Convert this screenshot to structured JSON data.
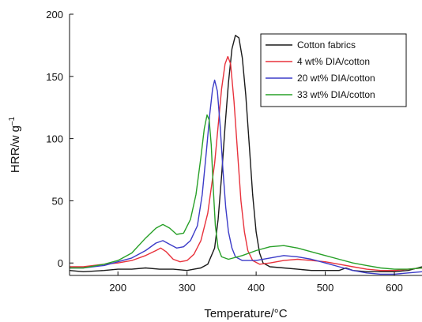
{
  "chart_data": {
    "type": "line",
    "title": "",
    "xlabel": "Temperature/°C",
    "ylabel_main": "HRR/w g",
    "ylabel_sup": "–1",
    "xlim": [
      130,
      640
    ],
    "ylim": [
      -10,
      200
    ],
    "xticks": [
      200,
      300,
      400,
      500,
      600
    ],
    "yticks": [
      0,
      50,
      100,
      150,
      200
    ],
    "grid": false,
    "legend_position": "top-right",
    "series": [
      {
        "name": "Cotton fabrics",
        "color": "#1a1a1a",
        "points": [
          [
            130,
            -6
          ],
          [
            150,
            -7
          ],
          [
            180,
            -6
          ],
          [
            200,
            -5
          ],
          [
            220,
            -5
          ],
          [
            240,
            -4
          ],
          [
            260,
            -5
          ],
          [
            280,
            -5
          ],
          [
            300,
            -6
          ],
          [
            310,
            -5
          ],
          [
            320,
            -4
          ],
          [
            330,
            -1
          ],
          [
            340,
            12
          ],
          [
            345,
            35
          ],
          [
            350,
            70
          ],
          [
            355,
            110
          ],
          [
            360,
            145
          ],
          [
            365,
            172
          ],
          [
            370,
            183
          ],
          [
            375,
            181
          ],
          [
            380,
            165
          ],
          [
            385,
            135
          ],
          [
            390,
            95
          ],
          [
            395,
            55
          ],
          [
            400,
            25
          ],
          [
            405,
            8
          ],
          [
            410,
            0
          ],
          [
            420,
            -3
          ],
          [
            440,
            -4
          ],
          [
            460,
            -5
          ],
          [
            480,
            -6
          ],
          [
            500,
            -6
          ],
          [
            520,
            -6
          ],
          [
            530,
            -4
          ],
          [
            540,
            -6
          ],
          [
            560,
            -7
          ],
          [
            580,
            -7
          ],
          [
            600,
            -7
          ],
          [
            620,
            -6
          ],
          [
            640,
            -3
          ]
        ]
      },
      {
        "name": "4 wt% DIA/cotton",
        "color": "#e8323c",
        "points": [
          [
            130,
            -3
          ],
          [
            150,
            -3
          ],
          [
            180,
            -1
          ],
          [
            200,
            0
          ],
          [
            220,
            2
          ],
          [
            240,
            6
          ],
          [
            255,
            10
          ],
          [
            262,
            12
          ],
          [
            270,
            9
          ],
          [
            280,
            3
          ],
          [
            290,
            1
          ],
          [
            300,
            2
          ],
          [
            310,
            7
          ],
          [
            320,
            18
          ],
          [
            330,
            40
          ],
          [
            340,
            80
          ],
          [
            345,
            110
          ],
          [
            350,
            140
          ],
          [
            355,
            160
          ],
          [
            359,
            166
          ],
          [
            363,
            160
          ],
          [
            368,
            130
          ],
          [
            373,
            90
          ],
          [
            378,
            50
          ],
          [
            383,
            25
          ],
          [
            388,
            10
          ],
          [
            395,
            2
          ],
          [
            405,
            -1
          ],
          [
            420,
            0
          ],
          [
            440,
            2
          ],
          [
            460,
            3
          ],
          [
            480,
            2
          ],
          [
            500,
            1
          ],
          [
            520,
            -1
          ],
          [
            540,
            -3
          ],
          [
            560,
            -5
          ],
          [
            580,
            -6
          ],
          [
            600,
            -6
          ],
          [
            620,
            -5
          ],
          [
            640,
            -4
          ]
        ]
      },
      {
        "name": "20 wt% DIA/cotton",
        "color": "#3c3cc8",
        "points": [
          [
            130,
            -4
          ],
          [
            150,
            -4
          ],
          [
            180,
            -2
          ],
          [
            200,
            1
          ],
          [
            220,
            4
          ],
          [
            240,
            10
          ],
          [
            255,
            16
          ],
          [
            265,
            18
          ],
          [
            275,
            15
          ],
          [
            285,
            12
          ],
          [
            295,
            13
          ],
          [
            305,
            18
          ],
          [
            315,
            30
          ],
          [
            322,
            55
          ],
          [
            328,
            90
          ],
          [
            333,
            120
          ],
          [
            337,
            140
          ],
          [
            340,
            147
          ],
          [
            344,
            138
          ],
          [
            348,
            110
          ],
          [
            352,
            75
          ],
          [
            356,
            45
          ],
          [
            360,
            25
          ],
          [
            365,
            12
          ],
          [
            370,
            5
          ],
          [
            380,
            2
          ],
          [
            400,
            2
          ],
          [
            420,
            4
          ],
          [
            440,
            6
          ],
          [
            460,
            5
          ],
          [
            480,
            3
          ],
          [
            500,
            0
          ],
          [
            520,
            -3
          ],
          [
            540,
            -6
          ],
          [
            560,
            -8
          ],
          [
            580,
            -9
          ],
          [
            600,
            -9
          ],
          [
            620,
            -8
          ],
          [
            640,
            -7
          ]
        ]
      },
      {
        "name": "33 wt% DIA/cotton",
        "color": "#28a028",
        "points": [
          [
            130,
            -4
          ],
          [
            150,
            -4
          ],
          [
            180,
            -1
          ],
          [
            200,
            2
          ],
          [
            220,
            8
          ],
          [
            240,
            20
          ],
          [
            255,
            28
          ],
          [
            265,
            31
          ],
          [
            275,
            28
          ],
          [
            285,
            23
          ],
          [
            295,
            24
          ],
          [
            305,
            35
          ],
          [
            313,
            55
          ],
          [
            320,
            85
          ],
          [
            325,
            108
          ],
          [
            329,
            119
          ],
          [
            332,
            115
          ],
          [
            335,
            95
          ],
          [
            338,
            60
          ],
          [
            341,
            30
          ],
          [
            345,
            12
          ],
          [
            350,
            5
          ],
          [
            360,
            3
          ],
          [
            380,
            6
          ],
          [
            400,
            10
          ],
          [
            420,
            13
          ],
          [
            440,
            14
          ],
          [
            460,
            12
          ],
          [
            480,
            9
          ],
          [
            500,
            6
          ],
          [
            520,
            3
          ],
          [
            540,
            0
          ],
          [
            560,
            -2
          ],
          [
            580,
            -4
          ],
          [
            600,
            -5
          ],
          [
            620,
            -5
          ],
          [
            640,
            -4
          ]
        ]
      }
    ]
  }
}
